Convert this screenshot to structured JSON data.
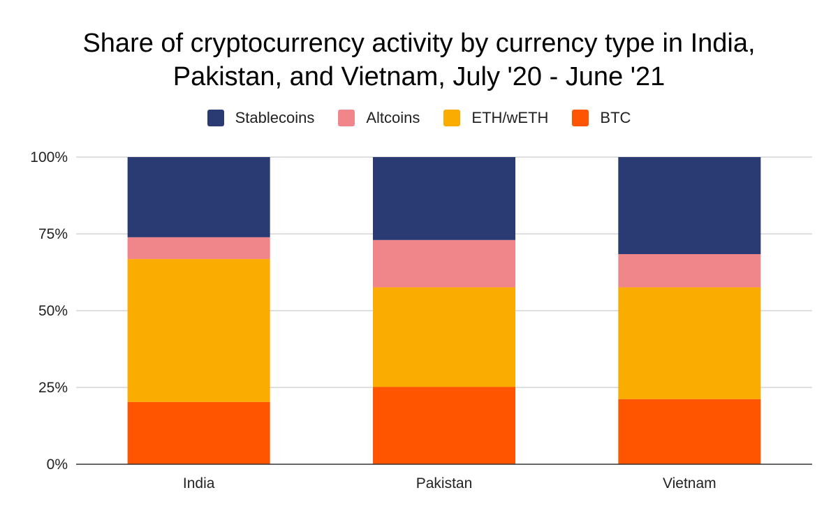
{
  "chart_data": {
    "type": "bar",
    "stacked": true,
    "title_lines": [
      "Share of cryptocurrency activity by currency type in India,",
      "Pakistan, and Vietnam, July '20 - June '21"
    ],
    "categories": [
      "India",
      "Pakistan",
      "Vietnam"
    ],
    "series": [
      {
        "name": "BTC",
        "color": "#ff5500",
        "values": [
          20.3,
          25.2,
          21.2
        ]
      },
      {
        "name": "ETH/wETH",
        "color": "#fbac00",
        "values": [
          46.5,
          32.4,
          36.4
        ]
      },
      {
        "name": "Altcoins",
        "color": "#f0868a",
        "values": [
          7.1,
          15.4,
          10.8
        ]
      },
      {
        "name": "Stablecoins",
        "color": "#2a3a73",
        "values": [
          26.1,
          27.0,
          31.6
        ]
      }
    ],
    "legend_order": [
      "Stablecoins",
      "Altcoins",
      "ETH/wETH",
      "BTC"
    ],
    "legend_position": "top-center",
    "yticks": [
      0,
      25,
      50,
      75,
      100
    ],
    "ytick_labels": [
      "0%",
      "25%",
      "50%",
      "75%",
      "100%"
    ],
    "ylim": [
      0,
      100
    ],
    "xlabel": "",
    "ylabel": "",
    "grid": true
  }
}
